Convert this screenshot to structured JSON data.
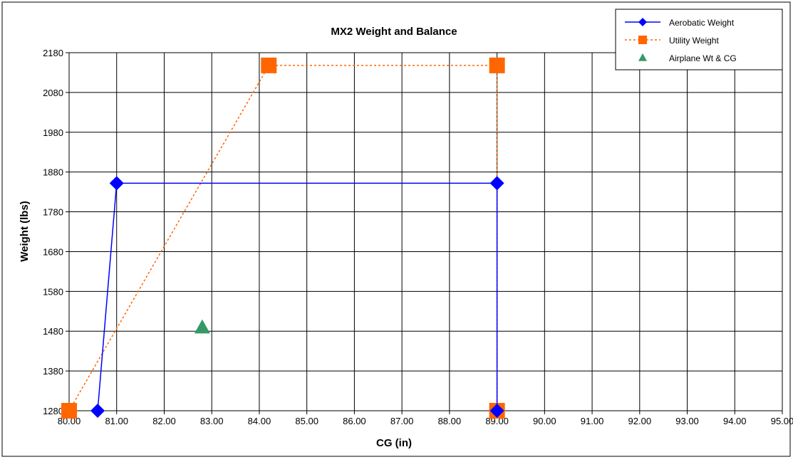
{
  "chart_data": {
    "type": "scatter",
    "title": "MX2 Weight and Balance",
    "xlabel": "CG (in)",
    "ylabel": "Weight (lbs)",
    "xlim": [
      80,
      95
    ],
    "ylim": [
      1280,
      2180
    ],
    "x_ticks": [
      80,
      81,
      82,
      83,
      84,
      85,
      86,
      87,
      88,
      89,
      90,
      91,
      92,
      93,
      94,
      95
    ],
    "x_tick_labels": [
      "80.00",
      "81.00",
      "82.00",
      "83.00",
      "84.00",
      "85.00",
      "86.00",
      "87.00",
      "88.00",
      "89.00",
      "90.00",
      "91.00",
      "92.00",
      "93.00",
      "94.00",
      "95.00"
    ],
    "y_ticks": [
      1280,
      1380,
      1480,
      1580,
      1680,
      1780,
      1880,
      1980,
      2080,
      2180
    ],
    "y_tick_labels": [
      "1280",
      "1380",
      "1480",
      "1580",
      "1680",
      "1780",
      "1880",
      "1980",
      "2080",
      "2180"
    ],
    "grid": true,
    "legend_position": "top-right",
    "series": [
      {
        "name": "Aerobatic Weight",
        "color": "#0000ff",
        "line": "solid",
        "marker": "diamond",
        "points": [
          [
            80.6,
            1280
          ],
          [
            81.0,
            1852
          ],
          [
            89.0,
            1852
          ],
          [
            89.0,
            1280
          ]
        ]
      },
      {
        "name": "Utility Weight",
        "color": "#ff6600",
        "line": "dotted",
        "marker": "square",
        "points": [
          [
            80.0,
            1280
          ],
          [
            84.2,
            2148
          ],
          [
            89.0,
            2148
          ],
          [
            89.0,
            1280
          ]
        ]
      },
      {
        "name": "Airplane Wt & CG",
        "color": "#339966",
        "line": "none",
        "marker": "triangle",
        "points": [
          [
            82.8,
            1490
          ]
        ]
      }
    ]
  }
}
